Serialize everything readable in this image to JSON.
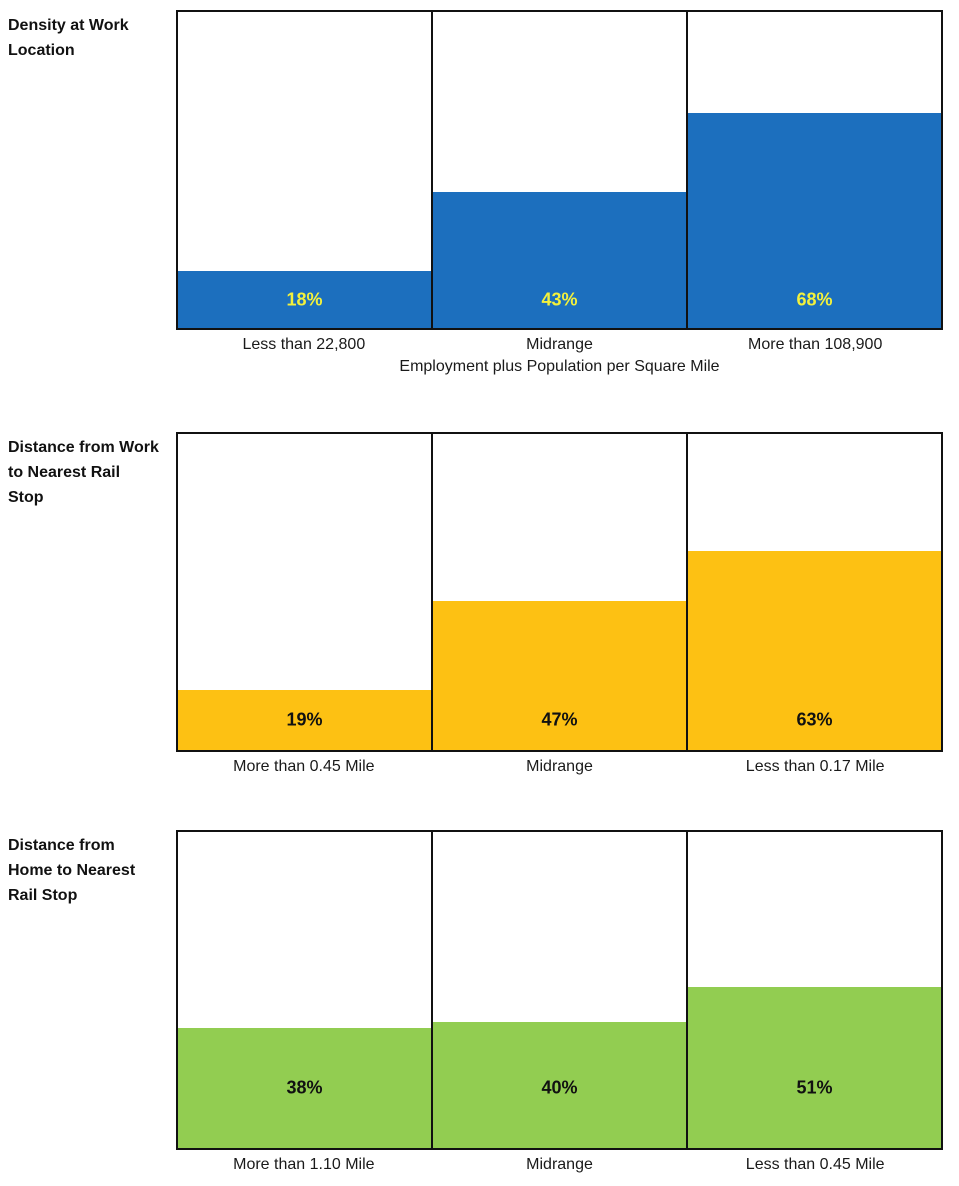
{
  "chart_data": [
    {
      "type": "bar",
      "title": "Density at Work Location",
      "categories": [
        "Less than 22,800",
        "Midrange",
        "More than 108,900"
      ],
      "values": [
        18,
        43,
        68
      ],
      "value_labels": [
        "18%",
        "43%",
        "68%"
      ],
      "xlabel": "Employment plus Population per Square Mile",
      "ylabel": "",
      "ylim": [
        0,
        100
      ],
      "grid": false,
      "legend": "none",
      "bar_color": "#1C6FBE",
      "value_label_color": "#F3F13C",
      "frame_color": "#111111"
    },
    {
      "type": "bar",
      "title": "Distance from Work to Nearest Rail Stop",
      "categories": [
        "More than 0.45 Mile",
        "Midrange",
        "Less than 0.17 Mile"
      ],
      "values": [
        19,
        47,
        63
      ],
      "value_labels": [
        "19%",
        "47%",
        "63%"
      ],
      "xlabel": "",
      "ylabel": "",
      "ylim": [
        0,
        100
      ],
      "grid": false,
      "legend": "none",
      "bar_color": "#FDC113",
      "value_label_color": "#111111",
      "frame_color": "#111111"
    },
    {
      "type": "bar",
      "title": "Distance from Home to Nearest Rail Stop",
      "categories": [
        "More than 1.10 Mile",
        "Midrange",
        "Less than 0.45 Mile"
      ],
      "values": [
        38,
        40,
        51
      ],
      "value_labels": [
        "38%",
        "40%",
        "51%"
      ],
      "xlabel": "",
      "ylabel": "",
      "ylim": [
        0,
        100
      ],
      "grid": false,
      "legend": "none",
      "bar_color": "#92CD51",
      "value_label_color": "#111111",
      "frame_color": "#111111"
    }
  ]
}
